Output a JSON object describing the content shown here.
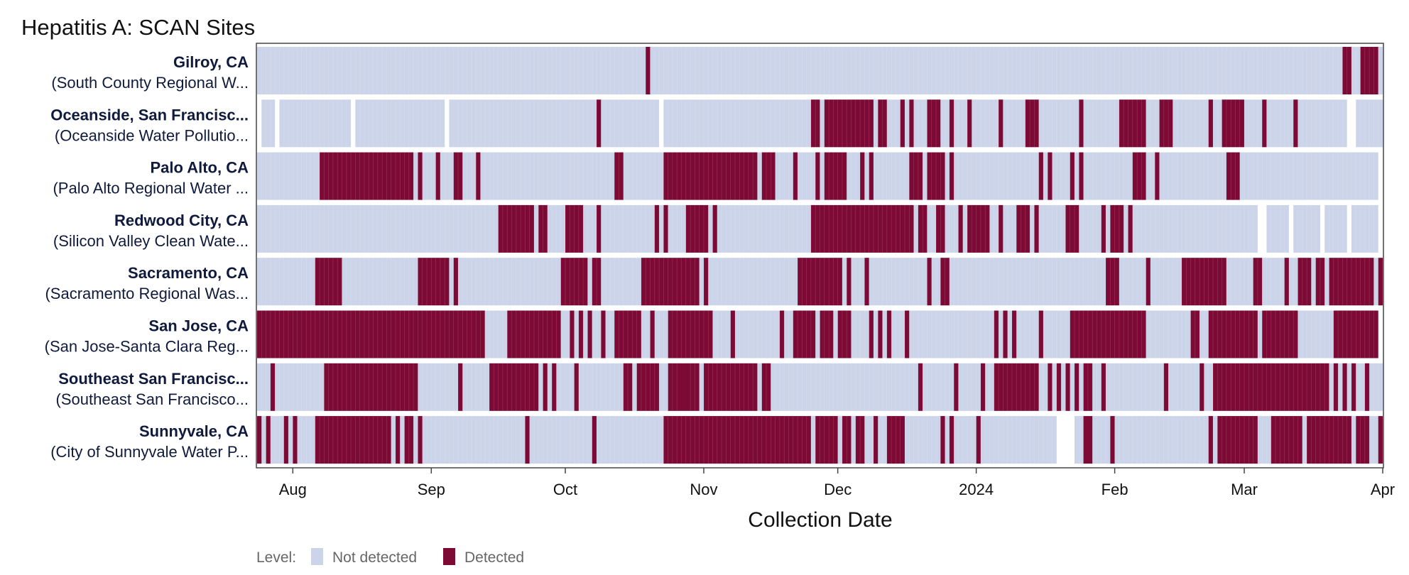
{
  "chart_data": {
    "type": "heatmap",
    "title": "Hepatitis A: SCAN Sites",
    "xlabel": "Collection Date",
    "x_range": [
      "2023-07-24",
      "2024-04-01"
    ],
    "x_ticks": [
      {
        "label": "Aug",
        "date": "2023-08-01"
      },
      {
        "label": "Sep",
        "date": "2023-09-01"
      },
      {
        "label": "Oct",
        "date": "2023-10-01"
      },
      {
        "label": "Nov",
        "date": "2023-11-01"
      },
      {
        "label": "Dec",
        "date": "2023-12-01"
      },
      {
        "label": "2024",
        "date": "2024-01-01"
      },
      {
        "label": "Feb",
        "date": "2024-02-01"
      },
      {
        "label": "Mar",
        "date": "2024-03-01"
      },
      {
        "label": "Apr",
        "date": "2024-04-01"
      }
    ],
    "legend": {
      "title": "Level:",
      "placement": "bottom-left",
      "items": [
        {
          "label": "Not detected",
          "color": "#ccd4ea"
        },
        {
          "label": "Detected",
          "color": "#7d0a35"
        }
      ]
    },
    "colors": {
      "not_detected": "#ccd4ea",
      "detected": "#7d0a35"
    },
    "sites": [
      {
        "name": "Gilroy, CA",
        "plant": "(South County Regional W...",
        "coverage": [
          [
            "2023-07-24",
            "2024-04-01"
          ]
        ],
        "detected": [
          [
            "2023-10-19",
            "2023-10-20"
          ],
          [
            "2024-03-23",
            "2024-03-25"
          ],
          [
            "2024-03-27",
            "2024-03-31"
          ]
        ]
      },
      {
        "name": "Oceanside, San Francisc...",
        "plant": "(Oceanside Water Pollutio...",
        "coverage": [
          [
            "2023-07-25",
            "2023-07-28"
          ],
          [
            "2023-07-29",
            "2023-08-14"
          ],
          [
            "2023-08-15",
            "2023-09-04"
          ],
          [
            "2023-09-05",
            "2023-10-22"
          ],
          [
            "2023-10-23",
            "2024-03-24"
          ],
          [
            "2024-03-26",
            "2024-04-01"
          ]
        ],
        "detected": [
          [
            "2023-10-08",
            "2023-10-09"
          ],
          [
            "2023-11-25",
            "2023-11-27"
          ],
          [
            "2023-11-28",
            "2023-12-09"
          ],
          [
            "2023-12-10",
            "2023-12-12"
          ],
          [
            "2023-12-15",
            "2023-12-16"
          ],
          [
            "2023-12-17",
            "2023-12-18"
          ],
          [
            "2023-12-21",
            "2023-12-24"
          ],
          [
            "2023-12-26",
            "2023-12-27"
          ],
          [
            "2023-12-30",
            "2023-12-31"
          ],
          [
            "2024-01-06",
            "2024-01-07"
          ],
          [
            "2024-01-12",
            "2024-01-15"
          ],
          [
            "2024-01-24",
            "2024-01-25"
          ],
          [
            "2024-02-02",
            "2024-02-08"
          ],
          [
            "2024-02-11",
            "2024-02-14"
          ],
          [
            "2024-02-22",
            "2024-02-23"
          ],
          [
            "2024-02-25",
            "2024-03-01"
          ],
          [
            "2024-03-05",
            "2024-03-06"
          ],
          [
            "2024-03-12",
            "2024-03-13"
          ]
        ]
      },
      {
        "name": "Palo Alto, CA",
        "plant": "(Palo Alto Regional Water ...",
        "coverage": [
          [
            "2023-07-24",
            "2024-03-31"
          ]
        ],
        "detected": [
          [
            "2023-08-07",
            "2023-08-28"
          ],
          [
            "2023-08-29",
            "2023-08-30"
          ],
          [
            "2023-09-02",
            "2023-09-03"
          ],
          [
            "2023-09-06",
            "2023-09-08"
          ],
          [
            "2023-09-11",
            "2023-09-12"
          ],
          [
            "2023-10-12",
            "2023-10-14"
          ],
          [
            "2023-10-23",
            "2023-11-13"
          ],
          [
            "2023-11-14",
            "2023-11-17"
          ],
          [
            "2023-11-21",
            "2023-11-22"
          ],
          [
            "2023-11-26",
            "2023-11-27"
          ],
          [
            "2023-11-28",
            "2023-12-03"
          ],
          [
            "2023-12-06",
            "2023-12-07"
          ],
          [
            "2023-12-08",
            "2023-12-09"
          ],
          [
            "2023-12-17",
            "2023-12-20"
          ],
          [
            "2023-12-21",
            "2023-12-25"
          ],
          [
            "2023-12-26",
            "2023-12-27"
          ],
          [
            "2024-01-15",
            "2024-01-16"
          ],
          [
            "2024-01-17",
            "2024-01-18"
          ],
          [
            "2024-01-22",
            "2024-01-23"
          ],
          [
            "2024-01-24",
            "2024-01-25"
          ],
          [
            "2024-02-05",
            "2024-02-08"
          ],
          [
            "2024-02-10",
            "2024-02-11"
          ],
          [
            "2024-02-26",
            "2024-02-29"
          ]
        ]
      },
      {
        "name": "Redwood City, CA",
        "plant": "(Silicon Valley Clean Wate...",
        "coverage": [
          [
            "2023-07-24",
            "2024-03-04"
          ],
          [
            "2024-03-06",
            "2024-03-11"
          ],
          [
            "2024-03-12",
            "2024-03-18"
          ],
          [
            "2024-03-19",
            "2024-03-24"
          ],
          [
            "2024-03-25",
            "2024-03-31"
          ]
        ],
        "detected": [
          [
            "2023-09-16",
            "2023-09-24"
          ],
          [
            "2023-09-25",
            "2023-09-27"
          ],
          [
            "2023-10-01",
            "2023-10-05"
          ],
          [
            "2023-10-08",
            "2023-10-09"
          ],
          [
            "2023-10-21",
            "2023-10-22"
          ],
          [
            "2023-10-23",
            "2023-10-24"
          ],
          [
            "2023-10-28",
            "2023-11-02"
          ],
          [
            "2023-11-03",
            "2023-11-04"
          ],
          [
            "2023-11-25",
            "2023-12-18"
          ],
          [
            "2023-12-19",
            "2023-12-21"
          ],
          [
            "2023-12-23",
            "2023-12-25"
          ],
          [
            "2023-12-28",
            "2023-12-29"
          ],
          [
            "2023-12-30",
            "2024-01-04"
          ],
          [
            "2024-01-06",
            "2024-01-07"
          ],
          [
            "2024-01-10",
            "2024-01-13"
          ],
          [
            "2024-01-14",
            "2024-01-15"
          ],
          [
            "2024-01-21",
            "2024-01-24"
          ],
          [
            "2024-01-29",
            "2024-01-30"
          ],
          [
            "2024-01-31",
            "2024-02-03"
          ],
          [
            "2024-02-04",
            "2024-02-05"
          ]
        ]
      },
      {
        "name": "Sacramento, CA",
        "plant": "(Sacramento Regional Was...",
        "coverage": [
          [
            "2023-07-24",
            "2024-04-01"
          ]
        ],
        "detected": [
          [
            "2023-08-06",
            "2023-08-12"
          ],
          [
            "2023-08-29",
            "2023-09-05"
          ],
          [
            "2023-09-06",
            "2023-09-07"
          ],
          [
            "2023-09-30",
            "2023-10-01"
          ],
          [
            "2023-10-01",
            "2023-10-06"
          ],
          [
            "2023-10-07",
            "2023-10-09"
          ],
          [
            "2023-10-18",
            "2023-10-31"
          ],
          [
            "2023-11-01",
            "2023-11-02"
          ],
          [
            "2023-11-22",
            "2023-12-02"
          ],
          [
            "2023-12-03",
            "2023-12-04"
          ],
          [
            "2023-12-07",
            "2023-12-08"
          ],
          [
            "2023-12-21",
            "2023-12-22"
          ],
          [
            "2023-12-24",
            "2023-12-26"
          ],
          [
            "2024-01-30",
            "2024-02-02"
          ],
          [
            "2024-02-08",
            "2024-02-09"
          ],
          [
            "2024-02-16",
            "2024-02-26"
          ],
          [
            "2024-03-03",
            "2024-03-05"
          ],
          [
            "2024-03-10",
            "2024-03-11"
          ],
          [
            "2024-03-13",
            "2024-03-16"
          ],
          [
            "2024-03-17",
            "2024-03-19"
          ],
          [
            "2024-03-20",
            "2024-03-30"
          ],
          [
            "2024-03-31",
            "2024-04-01"
          ]
        ]
      },
      {
        "name": "San Jose, CA",
        "plant": "(San Jose-Santa Clara Reg...",
        "coverage": [
          [
            "2023-07-24",
            "2024-03-31"
          ]
        ],
        "detected": [
          [
            "2023-07-24",
            "2023-09-13"
          ],
          [
            "2023-09-18",
            "2023-09-30"
          ],
          [
            "2023-10-02",
            "2023-10-03"
          ],
          [
            "2023-10-04",
            "2023-10-05"
          ],
          [
            "2023-10-06",
            "2023-10-07"
          ],
          [
            "2023-10-09",
            "2023-10-10"
          ],
          [
            "2023-10-12",
            "2023-10-18"
          ],
          [
            "2023-10-20",
            "2023-10-21"
          ],
          [
            "2023-10-24",
            "2023-11-03"
          ],
          [
            "2023-11-07",
            "2023-11-08"
          ],
          [
            "2023-11-18",
            "2023-11-19"
          ],
          [
            "2023-11-21",
            "2023-11-26"
          ],
          [
            "2023-11-27",
            "2023-11-30"
          ],
          [
            "2023-12-01",
            "2023-12-04"
          ],
          [
            "2023-12-08",
            "2023-12-09"
          ],
          [
            "2023-12-10",
            "2023-12-11"
          ],
          [
            "2023-12-12",
            "2023-12-13"
          ],
          [
            "2023-12-16",
            "2023-12-17"
          ],
          [
            "2024-01-05",
            "2024-01-06"
          ],
          [
            "2024-01-07",
            "2024-01-08"
          ],
          [
            "2024-01-09",
            "2024-01-10"
          ],
          [
            "2024-01-15",
            "2024-01-16"
          ],
          [
            "2024-01-22",
            "2024-02-08"
          ],
          [
            "2024-02-18",
            "2024-02-20"
          ],
          [
            "2024-02-22",
            "2024-03-04"
          ],
          [
            "2024-03-05",
            "2024-03-13"
          ],
          [
            "2024-03-21",
            "2024-03-31"
          ]
        ]
      },
      {
        "name": "Southeast San Francisc...",
        "plant": "(Southeast San Francisco...",
        "coverage": [
          [
            "2023-07-24",
            "2023-10-27"
          ],
          [
            "2023-10-28",
            "2024-04-01"
          ]
        ],
        "detected": [
          [
            "2023-07-27",
            "2023-07-28"
          ],
          [
            "2023-08-08",
            "2023-08-29"
          ],
          [
            "2023-09-07",
            "2023-09-08"
          ],
          [
            "2023-09-14",
            "2023-09-25"
          ],
          [
            "2023-09-26",
            "2023-09-27"
          ],
          [
            "2023-09-28",
            "2023-09-29"
          ],
          [
            "2023-10-03",
            "2023-10-04"
          ],
          [
            "2023-10-14",
            "2023-10-16"
          ],
          [
            "2023-10-17",
            "2023-10-22"
          ],
          [
            "2023-10-24",
            "2023-10-31"
          ],
          [
            "2023-11-01",
            "2023-11-13"
          ],
          [
            "2023-11-14",
            "2023-11-16"
          ],
          [
            "2023-12-19",
            "2023-12-20"
          ],
          [
            "2023-12-27",
            "2023-12-28"
          ],
          [
            "2024-01-02",
            "2024-01-03"
          ],
          [
            "2024-01-05",
            "2024-01-15"
          ],
          [
            "2024-01-17",
            "2024-01-18"
          ],
          [
            "2024-01-19",
            "2024-01-20"
          ],
          [
            "2024-01-21",
            "2024-01-22"
          ],
          [
            "2024-01-23",
            "2024-01-24"
          ],
          [
            "2024-01-25",
            "2024-01-27"
          ],
          [
            "2024-01-29",
            "2024-01-30"
          ],
          [
            "2024-02-12",
            "2024-02-13"
          ],
          [
            "2024-02-20",
            "2024-02-21"
          ],
          [
            "2024-02-23",
            "2024-03-20"
          ],
          [
            "2024-03-21",
            "2024-03-22"
          ],
          [
            "2024-03-23",
            "2024-03-24"
          ],
          [
            "2024-03-25",
            "2024-03-26"
          ],
          [
            "2024-03-28",
            "2024-03-29"
          ]
        ]
      },
      {
        "name": "Sunnyvale, CA",
        "plant": "(City of Sunnyvale Water P...",
        "coverage": [
          [
            "2023-07-24",
            "2024-01-19"
          ],
          [
            "2024-01-23",
            "2024-01-25"
          ],
          [
            "2024-01-27",
            "2024-03-31"
          ]
        ],
        "detected": [
          [
            "2023-07-24",
            "2023-07-25"
          ],
          [
            "2023-07-26",
            "2023-07-27"
          ],
          [
            "2023-07-30",
            "2023-07-31"
          ],
          [
            "2023-08-01",
            "2023-08-02"
          ],
          [
            "2023-08-06",
            "2023-08-23"
          ],
          [
            "2023-08-24",
            "2023-08-25"
          ],
          [
            "2023-08-26",
            "2023-08-28"
          ],
          [
            "2023-08-29",
            "2023-08-30"
          ],
          [
            "2023-09-22",
            "2023-09-23"
          ],
          [
            "2023-10-07",
            "2023-10-08"
          ],
          [
            "2023-10-23",
            "2023-11-25"
          ],
          [
            "2023-11-26",
            "2023-12-01"
          ],
          [
            "2023-12-02",
            "2023-12-04"
          ],
          [
            "2023-12-05",
            "2023-12-07"
          ],
          [
            "2023-12-09",
            "2023-12-10"
          ],
          [
            "2023-12-12",
            "2023-12-16"
          ],
          [
            "2023-12-24",
            "2023-12-25"
          ],
          [
            "2023-12-26",
            "2023-12-27"
          ],
          [
            "2024-01-01",
            "2024-01-02"
          ],
          [
            "2024-01-25",
            "2024-01-27"
          ],
          [
            "2024-01-31",
            "2024-02-01"
          ],
          [
            "2024-02-22",
            "2024-02-23"
          ],
          [
            "2024-02-24",
            "2024-03-04"
          ],
          [
            "2024-03-07",
            "2024-03-14"
          ],
          [
            "2024-03-15",
            "2024-03-25"
          ],
          [
            "2024-03-26",
            "2024-03-29"
          ],
          [
            "2024-03-31",
            "2024-04-01"
          ]
        ]
      }
    ]
  }
}
